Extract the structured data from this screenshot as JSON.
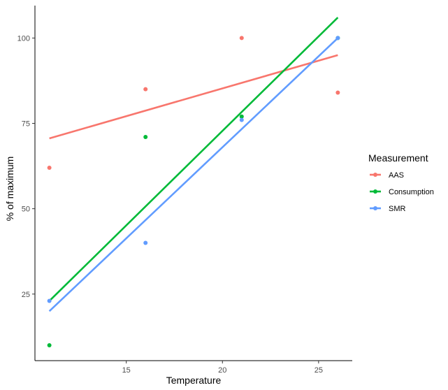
{
  "chart_data": {
    "type": "scatter",
    "title": "",
    "xlabel": "Temperature",
    "ylabel": "% of maximum",
    "xlim": [
      10.25,
      26.75
    ],
    "ylim": [
      5.5,
      109.5
    ],
    "x_ticks": [
      15,
      20,
      25
    ],
    "y_ticks": [
      25,
      50,
      75,
      100
    ],
    "x_tick_labels": [
      "15",
      "20",
      "25"
    ],
    "y_tick_labels": [
      "25",
      "50",
      "75",
      "100"
    ],
    "grid": false,
    "legend": {
      "title": "Measurement",
      "position": "right"
    },
    "series": [
      {
        "name": "AAS",
        "color": "#F8766D",
        "points": [
          {
            "x": 11,
            "y": 62
          },
          {
            "x": 16,
            "y": 85
          },
          {
            "x": 21,
            "y": 100
          },
          {
            "x": 26,
            "y": 84
          }
        ],
        "fit_line": {
          "x": [
            11,
            26
          ],
          "y": [
            70.6,
            95
          ]
        }
      },
      {
        "name": "Consumption",
        "color": "#00BA38",
        "points": [
          {
            "x": 11,
            "y": 10
          },
          {
            "x": 16,
            "y": 71
          },
          {
            "x": 21,
            "y": 77
          },
          {
            "x": 26,
            "y": 100
          }
        ],
        "fit_line": {
          "x": [
            11,
            26
          ],
          "y": [
            23,
            106
          ]
        }
      },
      {
        "name": "SMR",
        "color": "#619CFF",
        "points": [
          {
            "x": 11,
            "y": 23
          },
          {
            "x": 16,
            "y": 40
          },
          {
            "x": 21,
            "y": 76
          },
          {
            "x": 26,
            "y": 100
          }
        ],
        "fit_line": {
          "x": [
            11,
            26
          ],
          "y": [
            20,
            100
          ]
        }
      }
    ]
  }
}
